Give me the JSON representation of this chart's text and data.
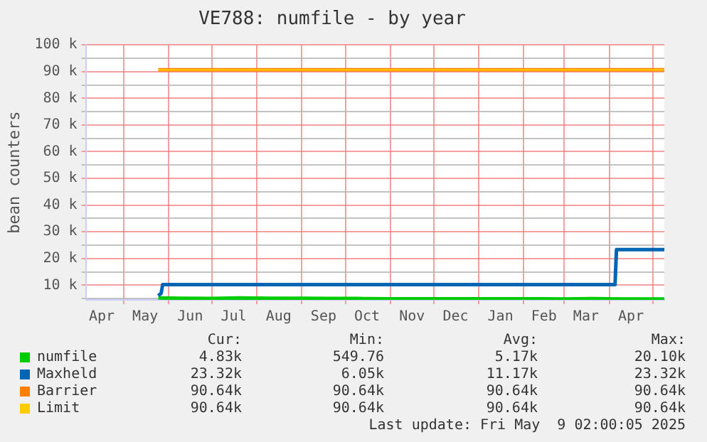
{
  "chart_data": {
    "type": "line",
    "title": "VE788: numfile - by year",
    "ylabel": "bean counters",
    "xlim": [
      "2024-04-05",
      "2025-05-09"
    ],
    "xticks": [
      {
        "value": "2024-04-16",
        "label": "Apr"
      },
      {
        "value": "2024-05-01",
        "label": null
      },
      {
        "value": "2024-05-16",
        "label": "May"
      },
      {
        "value": "2024-06-01",
        "label": null
      },
      {
        "value": "2024-06-16",
        "label": "Jun"
      },
      {
        "value": "2024-07-01",
        "label": null
      },
      {
        "value": "2024-07-16",
        "label": "Jul"
      },
      {
        "value": "2024-08-01",
        "label": null
      },
      {
        "value": "2024-08-16",
        "label": "Aug"
      },
      {
        "value": "2024-09-01",
        "label": null
      },
      {
        "value": "2024-09-16",
        "label": "Sep"
      },
      {
        "value": "2024-10-01",
        "label": null
      },
      {
        "value": "2024-10-16",
        "label": "Oct"
      },
      {
        "value": "2024-11-01",
        "label": null
      },
      {
        "value": "2024-11-16",
        "label": "Nov"
      },
      {
        "value": "2024-12-01",
        "label": null
      },
      {
        "value": "2024-12-16",
        "label": "Dec"
      },
      {
        "value": "2025-01-01",
        "label": null
      },
      {
        "value": "2025-01-16",
        "label": "Jan"
      },
      {
        "value": "2025-02-01",
        "label": null
      },
      {
        "value": "2025-02-15",
        "label": "Feb"
      },
      {
        "value": "2025-03-01",
        "label": null
      },
      {
        "value": "2025-03-16",
        "label": "Mar"
      },
      {
        "value": "2025-04-01",
        "label": null
      },
      {
        "value": "2025-04-16",
        "label": "Apr"
      },
      {
        "value": "2025-05-01",
        "label": null
      }
    ],
    "ylim": [
      4500,
      100000
    ],
    "yticks": [
      {
        "value": 5000,
        "label": null
      },
      {
        "value": 10000,
        "label": "10 k"
      },
      {
        "value": 15000,
        "label": null
      },
      {
        "value": 20000,
        "label": "20 k"
      },
      {
        "value": 25000,
        "label": null
      },
      {
        "value": 30000,
        "label": "30 k"
      },
      {
        "value": 35000,
        "label": null
      },
      {
        "value": 40000,
        "label": "40 k"
      },
      {
        "value": 45000,
        "label": null
      },
      {
        "value": 50000,
        "label": "50 k"
      },
      {
        "value": 55000,
        "label": null
      },
      {
        "value": 60000,
        "label": "60 k"
      },
      {
        "value": 65000,
        "label": null
      },
      {
        "value": 70000,
        "label": "70 k"
      },
      {
        "value": 75000,
        "label": null
      },
      {
        "value": 80000,
        "label": "80 k"
      },
      {
        "value": 85000,
        "label": null
      },
      {
        "value": 90000,
        "label": "90 k"
      },
      {
        "value": 95000,
        "label": null
      },
      {
        "value": 100000,
        "label": "100 k"
      }
    ],
    "grid": true,
    "legend": "bottom",
    "marker": "none",
    "line_style": "solid",
    "series": [
      {
        "name": "numfile",
        "color": "#00cc00",
        "x": [
          "2024-05-25",
          "2024-06-10",
          "2024-07-01",
          "2024-07-20",
          "2024-08-10",
          "2024-09-01",
          "2024-09-20",
          "2024-10-10",
          "2024-11-01",
          "2024-12-01",
          "2025-01-01",
          "2025-02-01",
          "2025-03-01",
          "2025-03-20",
          "2025-04-10",
          "2025-05-09"
        ],
        "values": [
          5200,
          5100,
          5000,
          5200,
          5100,
          5100,
          5000,
          5000,
          4900,
          4900,
          4900,
          4900,
          4850,
          4950,
          4850,
          4830
        ]
      },
      {
        "name": "Maxheld",
        "color": "#0066b3",
        "x": [
          "2024-05-25",
          "2024-05-27",
          "2024-05-28",
          "2025-04-05",
          "2025-04-06",
          "2025-05-09"
        ],
        "values": [
          6050,
          7000,
          10200,
          10200,
          23320,
          23320
        ]
      },
      {
        "name": "Barrier",
        "color": "#ff8000",
        "x": [
          "2024-05-25",
          "2025-05-09"
        ],
        "values": [
          90640,
          90640
        ]
      },
      {
        "name": "Limit",
        "color": "#ffcc00",
        "x": [
          "2024-05-25",
          "2025-05-09"
        ],
        "values": [
          90640,
          90640
        ]
      }
    ],
    "annotations": [
      "Cur:",
      "Min:",
      "Avg:",
      "Max:",
      "4.83k",
      "549.76",
      "5.17k",
      "20.10k",
      "23.32k",
      "6.05k",
      "11.17k",
      "23.32k",
      "90.64k",
      "90.64k",
      "90.64k",
      "90.64k",
      "90.64k",
      "90.64k",
      "90.64k",
      "90.64k",
      "Last update: Fri May  9 02:00:05 2025"
    ]
  }
}
